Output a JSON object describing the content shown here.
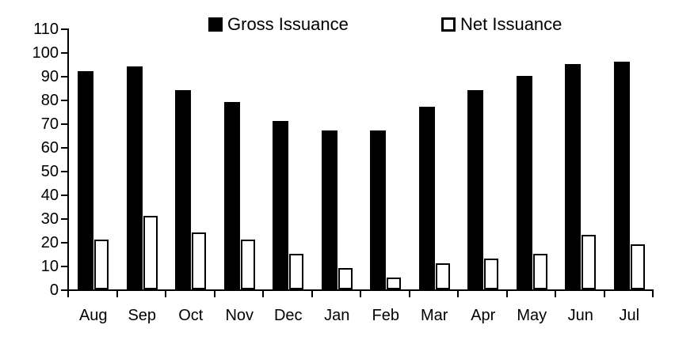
{
  "chart_data": {
    "type": "bar",
    "title": "",
    "xlabel": "",
    "ylabel": "",
    "categories": [
      "Aug",
      "Sep",
      "Oct",
      "Nov",
      "Dec",
      "Jan",
      "Feb",
      "Mar",
      "Apr",
      "May",
      "Jun",
      "Jul"
    ],
    "series": [
      {
        "name": "Gross Issuance",
        "values": [
          92,
          94,
          84,
          79,
          71,
          67,
          67,
          77,
          84,
          90,
          95,
          96
        ],
        "fill": "#000000",
        "stroke": "#000000"
      },
      {
        "name": "Net Issuance",
        "values": [
          21,
          31,
          24,
          21,
          15,
          9,
          5,
          11,
          13,
          15,
          23,
          19
        ],
        "fill": "#ffffff",
        "stroke": "#000000"
      }
    ],
    "ylim": [
      0,
      110
    ],
    "y_tick_step": 10,
    "y_tick_labels": [
      "0",
      "10",
      "20",
      "30",
      "40",
      "50",
      "60",
      "70",
      "80",
      "90",
      "100",
      "110"
    ],
    "grid": false,
    "legend_position": "top"
  },
  "colors": {
    "background": "#ffffff",
    "axis": "#000000",
    "text": "#000000",
    "gross_fill": "#000000",
    "net_fill": "#ffffff",
    "net_stroke": "#000000"
  }
}
